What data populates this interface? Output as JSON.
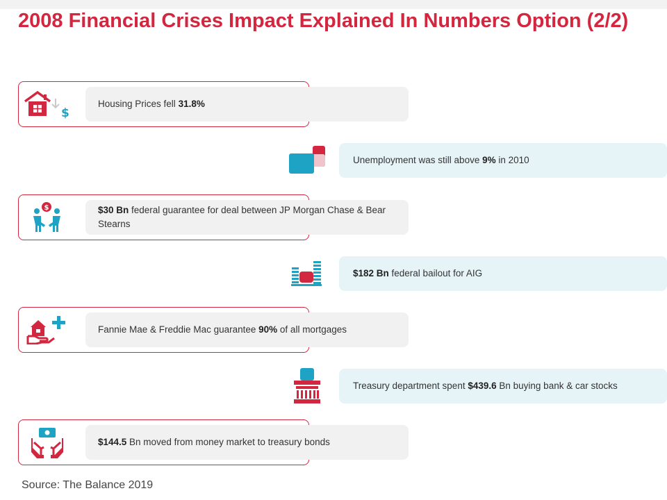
{
  "title": "2008 Financial Crises Impact Explained In Numbers Option (2/2)",
  "items": [
    {
      "side": "left",
      "icon": "house-price-down-icon",
      "pre": "Housing Prices fell ",
      "bold": "31.8%",
      "post": ""
    },
    {
      "side": "right",
      "icon": "briefcase-icon",
      "pre": "Unemployment was still above ",
      "bold": "9%",
      "post": " in 2010"
    },
    {
      "side": "left",
      "icon": "handshake-dollar-icon",
      "pre": "",
      "bold": "$30 Bn",
      "post": " federal guarantee for deal between JP Morgan Chase & Bear Stearns"
    },
    {
      "side": "right",
      "icon": "coin-stacks-icon",
      "pre": "",
      "bold": "$182 Bn",
      "post": " federal bailout for AIG"
    },
    {
      "side": "left",
      "icon": "home-loan-plus-icon",
      "pre": "Fannie Mae & Freddie Mac guarantee ",
      "bold": "90%",
      "post": " of all mortgages"
    },
    {
      "side": "right",
      "icon": "bank-building-icon",
      "pre": "Treasury department spent ",
      "bold": "$439.6",
      "post": " Bn buying bank & car stocks"
    },
    {
      "side": "left",
      "icon": "hands-money-icon",
      "pre": "",
      "bold": "$144.5",
      "post": " Bn moved from money market to treasury bonds"
    }
  ],
  "source": "Source: The Balance 2019",
  "colors": {
    "accent": "#d3263f",
    "teal": "#1fa3c4",
    "left_pill": "#f1f1f1",
    "right_pill": "#e6f4f8"
  }
}
